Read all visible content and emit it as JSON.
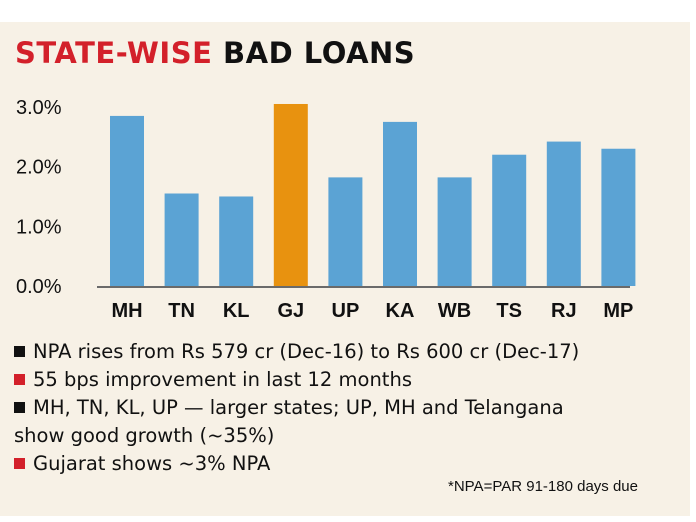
{
  "title": {
    "highlight": "STATE-WISE",
    "rest": "BAD LOANS"
  },
  "colors": {
    "bar": "#5ba3d4",
    "highlight_bar": "#e8920f",
    "title_highlight": "#d3202a",
    "panel_background": "#f7f1e6",
    "bullet_red": "#d3202a",
    "bullet_black": "#111111"
  },
  "chart_data": {
    "type": "bar",
    "categories": [
      "MH",
      "TN",
      "KL",
      "GJ",
      "UP",
      "KA",
      "WB",
      "TS",
      "RJ",
      "MP"
    ],
    "values": [
      2.85,
      1.55,
      1.5,
      3.05,
      1.82,
      2.75,
      1.82,
      2.2,
      2.42,
      2.3
    ],
    "highlight_category": "GJ",
    "yticks": [
      "0.0%",
      "1.0%",
      "2.0%",
      "3.0%"
    ],
    "ytick_values": [
      0,
      1,
      2,
      3
    ],
    "ylim": [
      0,
      3.1
    ],
    "title": "",
    "xlabel": "",
    "ylabel": "",
    "grid": false,
    "legend": "none"
  },
  "notes": [
    {
      "bullet": "black",
      "text": "NPA rises from Rs 579 cr (Dec-16) to Rs 600 cr (Dec-17)"
    },
    {
      "bullet": "red",
      "text": "55 bps improvement in last 12 months"
    },
    {
      "bullet": "black",
      "text": "MH, TN, KL, UP — larger states; UP, MH and Telangana"
    },
    {
      "bullet": "",
      "text": "show good growth (~35%)"
    },
    {
      "bullet": "red",
      "text": "Gujarat shows ~3% NPA"
    }
  ],
  "footnote": "*NPA=PAR 91-180 days due"
}
